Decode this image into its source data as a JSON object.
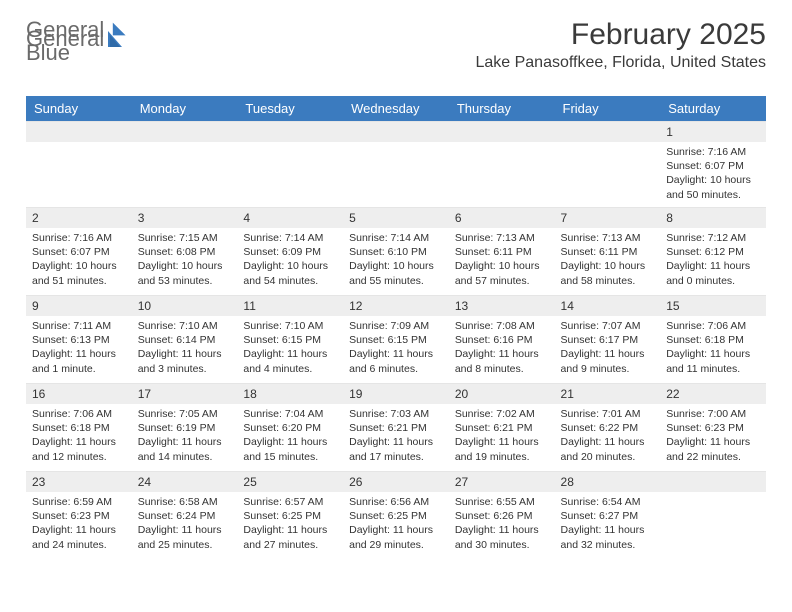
{
  "brand": {
    "part1": "General",
    "part2": "Blue"
  },
  "title": "February 2025",
  "location": "Lake Panasoffkee, Florida, United States",
  "colors": {
    "header_bg": "#3b7bbf",
    "header_text": "#ffffff",
    "daynum_bg": "#eeeeee",
    "body_text": "#333333",
    "page_bg": "#ffffff"
  },
  "weekdays": [
    "Sunday",
    "Monday",
    "Tuesday",
    "Wednesday",
    "Thursday",
    "Friday",
    "Saturday"
  ],
  "weeks": [
    [
      {
        "n": "",
        "sr": "",
        "ss": "",
        "dl1": "",
        "dl2": ""
      },
      {
        "n": "",
        "sr": "",
        "ss": "",
        "dl1": "",
        "dl2": ""
      },
      {
        "n": "",
        "sr": "",
        "ss": "",
        "dl1": "",
        "dl2": ""
      },
      {
        "n": "",
        "sr": "",
        "ss": "",
        "dl1": "",
        "dl2": ""
      },
      {
        "n": "",
        "sr": "",
        "ss": "",
        "dl1": "",
        "dl2": ""
      },
      {
        "n": "",
        "sr": "",
        "ss": "",
        "dl1": "",
        "dl2": ""
      },
      {
        "n": "1",
        "sr": "Sunrise: 7:16 AM",
        "ss": "Sunset: 6:07 PM",
        "dl1": "Daylight: 10 hours",
        "dl2": "and 50 minutes."
      }
    ],
    [
      {
        "n": "2",
        "sr": "Sunrise: 7:16 AM",
        "ss": "Sunset: 6:07 PM",
        "dl1": "Daylight: 10 hours",
        "dl2": "and 51 minutes."
      },
      {
        "n": "3",
        "sr": "Sunrise: 7:15 AM",
        "ss": "Sunset: 6:08 PM",
        "dl1": "Daylight: 10 hours",
        "dl2": "and 53 minutes."
      },
      {
        "n": "4",
        "sr": "Sunrise: 7:14 AM",
        "ss": "Sunset: 6:09 PM",
        "dl1": "Daylight: 10 hours",
        "dl2": "and 54 minutes."
      },
      {
        "n": "5",
        "sr": "Sunrise: 7:14 AM",
        "ss": "Sunset: 6:10 PM",
        "dl1": "Daylight: 10 hours",
        "dl2": "and 55 minutes."
      },
      {
        "n": "6",
        "sr": "Sunrise: 7:13 AM",
        "ss": "Sunset: 6:11 PM",
        "dl1": "Daylight: 10 hours",
        "dl2": "and 57 minutes."
      },
      {
        "n": "7",
        "sr": "Sunrise: 7:13 AM",
        "ss": "Sunset: 6:11 PM",
        "dl1": "Daylight: 10 hours",
        "dl2": "and 58 minutes."
      },
      {
        "n": "8",
        "sr": "Sunrise: 7:12 AM",
        "ss": "Sunset: 6:12 PM",
        "dl1": "Daylight: 11 hours",
        "dl2": "and 0 minutes."
      }
    ],
    [
      {
        "n": "9",
        "sr": "Sunrise: 7:11 AM",
        "ss": "Sunset: 6:13 PM",
        "dl1": "Daylight: 11 hours",
        "dl2": "and 1 minute."
      },
      {
        "n": "10",
        "sr": "Sunrise: 7:10 AM",
        "ss": "Sunset: 6:14 PM",
        "dl1": "Daylight: 11 hours",
        "dl2": "and 3 minutes."
      },
      {
        "n": "11",
        "sr": "Sunrise: 7:10 AM",
        "ss": "Sunset: 6:15 PM",
        "dl1": "Daylight: 11 hours",
        "dl2": "and 4 minutes."
      },
      {
        "n": "12",
        "sr": "Sunrise: 7:09 AM",
        "ss": "Sunset: 6:15 PM",
        "dl1": "Daylight: 11 hours",
        "dl2": "and 6 minutes."
      },
      {
        "n": "13",
        "sr": "Sunrise: 7:08 AM",
        "ss": "Sunset: 6:16 PM",
        "dl1": "Daylight: 11 hours",
        "dl2": "and 8 minutes."
      },
      {
        "n": "14",
        "sr": "Sunrise: 7:07 AM",
        "ss": "Sunset: 6:17 PM",
        "dl1": "Daylight: 11 hours",
        "dl2": "and 9 minutes."
      },
      {
        "n": "15",
        "sr": "Sunrise: 7:06 AM",
        "ss": "Sunset: 6:18 PM",
        "dl1": "Daylight: 11 hours",
        "dl2": "and 11 minutes."
      }
    ],
    [
      {
        "n": "16",
        "sr": "Sunrise: 7:06 AM",
        "ss": "Sunset: 6:18 PM",
        "dl1": "Daylight: 11 hours",
        "dl2": "and 12 minutes."
      },
      {
        "n": "17",
        "sr": "Sunrise: 7:05 AM",
        "ss": "Sunset: 6:19 PM",
        "dl1": "Daylight: 11 hours",
        "dl2": "and 14 minutes."
      },
      {
        "n": "18",
        "sr": "Sunrise: 7:04 AM",
        "ss": "Sunset: 6:20 PM",
        "dl1": "Daylight: 11 hours",
        "dl2": "and 15 minutes."
      },
      {
        "n": "19",
        "sr": "Sunrise: 7:03 AM",
        "ss": "Sunset: 6:21 PM",
        "dl1": "Daylight: 11 hours",
        "dl2": "and 17 minutes."
      },
      {
        "n": "20",
        "sr": "Sunrise: 7:02 AM",
        "ss": "Sunset: 6:21 PM",
        "dl1": "Daylight: 11 hours",
        "dl2": "and 19 minutes."
      },
      {
        "n": "21",
        "sr": "Sunrise: 7:01 AM",
        "ss": "Sunset: 6:22 PM",
        "dl1": "Daylight: 11 hours",
        "dl2": "and 20 minutes."
      },
      {
        "n": "22",
        "sr": "Sunrise: 7:00 AM",
        "ss": "Sunset: 6:23 PM",
        "dl1": "Daylight: 11 hours",
        "dl2": "and 22 minutes."
      }
    ],
    [
      {
        "n": "23",
        "sr": "Sunrise: 6:59 AM",
        "ss": "Sunset: 6:23 PM",
        "dl1": "Daylight: 11 hours",
        "dl2": "and 24 minutes."
      },
      {
        "n": "24",
        "sr": "Sunrise: 6:58 AM",
        "ss": "Sunset: 6:24 PM",
        "dl1": "Daylight: 11 hours",
        "dl2": "and 25 minutes."
      },
      {
        "n": "25",
        "sr": "Sunrise: 6:57 AM",
        "ss": "Sunset: 6:25 PM",
        "dl1": "Daylight: 11 hours",
        "dl2": "and 27 minutes."
      },
      {
        "n": "26",
        "sr": "Sunrise: 6:56 AM",
        "ss": "Sunset: 6:25 PM",
        "dl1": "Daylight: 11 hours",
        "dl2": "and 29 minutes."
      },
      {
        "n": "27",
        "sr": "Sunrise: 6:55 AM",
        "ss": "Sunset: 6:26 PM",
        "dl1": "Daylight: 11 hours",
        "dl2": "and 30 minutes."
      },
      {
        "n": "28",
        "sr": "Sunrise: 6:54 AM",
        "ss": "Sunset: 6:27 PM",
        "dl1": "Daylight: 11 hours",
        "dl2": "and 32 minutes."
      },
      {
        "n": "",
        "sr": "",
        "ss": "",
        "dl1": "",
        "dl2": ""
      }
    ]
  ]
}
